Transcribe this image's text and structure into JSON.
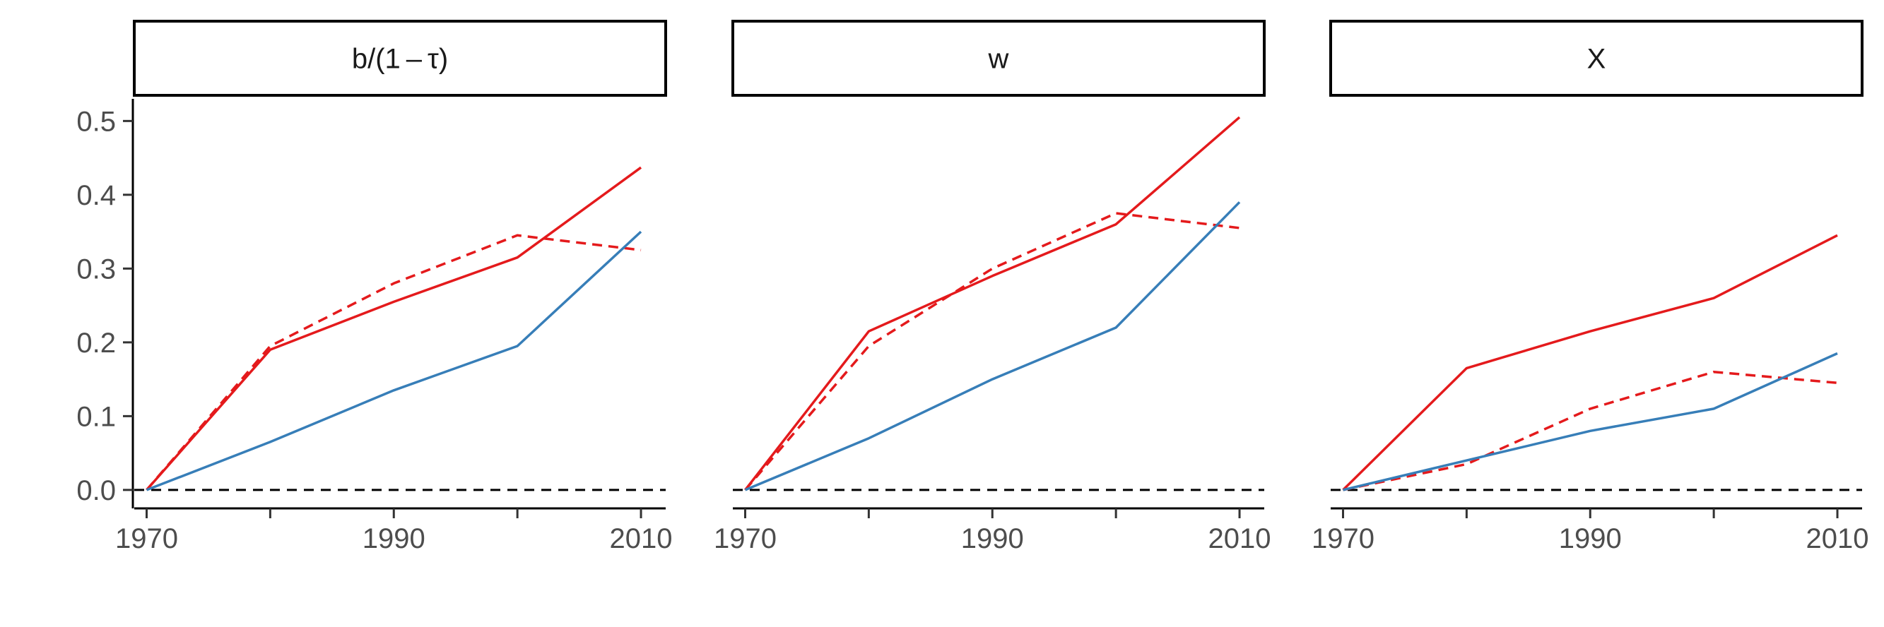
{
  "chart_data": {
    "type": "line",
    "x": [
      1970,
      1980,
      1990,
      2000,
      2010
    ],
    "x_tick_labels": [
      "1970",
      "1990",
      "2010"
    ],
    "x_ticks": [
      1970,
      1980,
      1990,
      2000,
      2010
    ],
    "xlim": [
      1969,
      2012
    ],
    "ylim": [
      -0.025,
      0.53
    ],
    "y_ticks": [
      0.0,
      0.1,
      0.2,
      0.3,
      0.4,
      0.5
    ],
    "y_tick_labels": [
      "0.0",
      "0.1",
      "0.2",
      "0.3",
      "0.4",
      "0.5"
    ],
    "reference_line": {
      "y": 0,
      "style": "dashed",
      "color": "#000000"
    },
    "grid": false,
    "legend": "none",
    "colors": {
      "red": "#e41a1c",
      "blue": "#377eb8"
    },
    "panels": [
      {
        "strip_label": "b/(1 – τ)",
        "series": [
          {
            "color": "#e41a1c",
            "dash": "solid",
            "values": [
              0.0,
              0.19,
              0.255,
              0.315,
              0.437
            ]
          },
          {
            "color": "#e41a1c",
            "dash": "dashed",
            "values": [
              0.0,
              0.195,
              0.28,
              0.345,
              0.325
            ]
          },
          {
            "color": "#377eb8",
            "dash": "solid",
            "values": [
              0.0,
              0.065,
              0.135,
              0.195,
              0.35
            ]
          }
        ]
      },
      {
        "strip_label": "w",
        "series": [
          {
            "color": "#e41a1c",
            "dash": "solid",
            "values": [
              0.0,
              0.215,
              0.29,
              0.36,
              0.505
            ]
          },
          {
            "color": "#e41a1c",
            "dash": "dashed",
            "values": [
              0.0,
              0.195,
              0.3,
              0.375,
              0.355
            ]
          },
          {
            "color": "#377eb8",
            "dash": "solid",
            "values": [
              0.0,
              0.07,
              0.15,
              0.22,
              0.39
            ]
          }
        ]
      },
      {
        "strip_label": "X",
        "series": [
          {
            "color": "#e41a1c",
            "dash": "solid",
            "values": [
              0.0,
              0.165,
              0.215,
              0.26,
              0.345
            ]
          },
          {
            "color": "#e41a1c",
            "dash": "dashed",
            "values": [
              0.0,
              0.035,
              0.11,
              0.16,
              0.145
            ]
          },
          {
            "color": "#377eb8",
            "dash": "solid",
            "values": [
              0.0,
              0.04,
              0.08,
              0.11,
              0.185
            ]
          }
        ]
      }
    ]
  }
}
